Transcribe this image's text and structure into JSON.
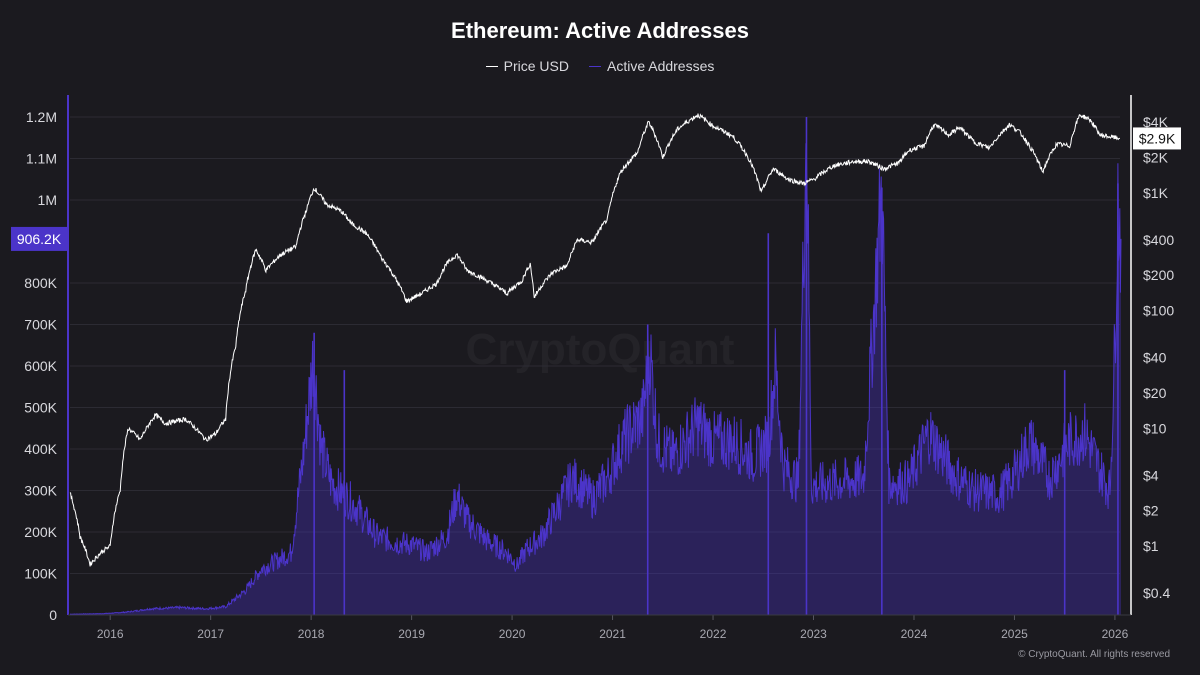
{
  "chart_data": {
    "type": "line",
    "title": "Ethereum: Active Addresses",
    "legend_position": "top-center",
    "grid": true,
    "series": [
      {
        "name": "Price USD",
        "axis": "right",
        "color": "#ffffff",
        "points": [
          [
            2015.6,
            2.8
          ],
          [
            2015.7,
            1.2
          ],
          [
            2015.8,
            0.7
          ],
          [
            2015.92,
            0.9
          ],
          [
            2016.0,
            1.0
          ],
          [
            2016.1,
            3.0
          ],
          [
            2016.18,
            10.0
          ],
          [
            2016.3,
            8.0
          ],
          [
            2016.45,
            13.0
          ],
          [
            2016.55,
            11.0
          ],
          [
            2016.75,
            12.0
          ],
          [
            2016.95,
            8.0
          ],
          [
            2017.05,
            9.0
          ],
          [
            2017.15,
            12.0
          ],
          [
            2017.25,
            50.0
          ],
          [
            2017.35,
            150.0
          ],
          [
            2017.45,
            330.0
          ],
          [
            2017.55,
            220.0
          ],
          [
            2017.7,
            300.0
          ],
          [
            2017.85,
            350.0
          ],
          [
            2017.95,
            700.0
          ],
          [
            2018.03,
            1100.0
          ],
          [
            2018.15,
            800.0
          ],
          [
            2018.3,
            700.0
          ],
          [
            2018.4,
            550.0
          ],
          [
            2018.55,
            450.0
          ],
          [
            2018.7,
            280.0
          ],
          [
            2018.85,
            180.0
          ],
          [
            2018.95,
            120.0
          ],
          [
            2019.1,
            140.0
          ],
          [
            2019.25,
            170.0
          ],
          [
            2019.35,
            250.0
          ],
          [
            2019.45,
            300.0
          ],
          [
            2019.55,
            220.0
          ],
          [
            2019.75,
            180.0
          ],
          [
            2019.95,
            140.0
          ],
          [
            2020.1,
            180.0
          ],
          [
            2020.18,
            250.0
          ],
          [
            2020.22,
            130.0
          ],
          [
            2020.4,
            210.0
          ],
          [
            2020.55,
            240.0
          ],
          [
            2020.65,
            400.0
          ],
          [
            2020.8,
            380.0
          ],
          [
            2020.95,
            600.0
          ],
          [
            2021.08,
            1500.0
          ],
          [
            2021.25,
            2200.0
          ],
          [
            2021.36,
            4000.0
          ],
          [
            2021.5,
            2000.0
          ],
          [
            2021.65,
            3500.0
          ],
          [
            2021.85,
            4600.0
          ],
          [
            2022.0,
            3700.0
          ],
          [
            2022.2,
            3000.0
          ],
          [
            2022.35,
            2000.0
          ],
          [
            2022.48,
            1000.0
          ],
          [
            2022.6,
            1600.0
          ],
          [
            2022.75,
            1300.0
          ],
          [
            2022.9,
            1200.0
          ],
          [
            2023.0,
            1300.0
          ],
          [
            2023.2,
            1700.0
          ],
          [
            2023.4,
            1850.0
          ],
          [
            2023.55,
            1850.0
          ],
          [
            2023.7,
            1600.0
          ],
          [
            2023.85,
            1800.0
          ],
          [
            2023.95,
            2300.0
          ],
          [
            2024.1,
            2500.0
          ],
          [
            2024.2,
            3800.0
          ],
          [
            2024.35,
            3100.0
          ],
          [
            2024.45,
            3600.0
          ],
          [
            2024.6,
            2700.0
          ],
          [
            2024.75,
            2400.0
          ],
          [
            2024.95,
            3800.0
          ],
          [
            2025.05,
            3300.0
          ],
          [
            2025.15,
            2500.0
          ],
          [
            2025.28,
            1500.0
          ],
          [
            2025.42,
            2600.0
          ],
          [
            2025.55,
            2500.0
          ],
          [
            2025.65,
            4600.0
          ],
          [
            2025.75,
            4200.0
          ],
          [
            2025.85,
            3100.0
          ],
          [
            2025.95,
            3000.0
          ],
          [
            2026.05,
            2900.0
          ]
        ]
      },
      {
        "name": "Active Addresses",
        "axis": "left",
        "color": "#4b34c9",
        "points": [
          [
            2015.6,
            2000
          ],
          [
            2015.9,
            3000
          ],
          [
            2016.05,
            5000
          ],
          [
            2016.2,
            8000
          ],
          [
            2016.4,
            15000
          ],
          [
            2016.7,
            18000
          ],
          [
            2016.95,
            15000
          ],
          [
            2017.15,
            20000
          ],
          [
            2017.35,
            60000
          ],
          [
            2017.5,
            110000
          ],
          [
            2017.65,
            130000
          ],
          [
            2017.8,
            150000
          ],
          [
            2017.92,
            380000
          ],
          [
            2018.02,
            620000
          ],
          [
            2018.1,
            400000
          ],
          [
            2018.2,
            320000
          ],
          [
            2018.45,
            260000
          ],
          [
            2018.65,
            190000
          ],
          [
            2018.85,
            175000
          ],
          [
            2019.0,
            170000
          ],
          [
            2019.15,
            150000
          ],
          [
            2019.35,
            190000
          ],
          [
            2019.45,
            290000
          ],
          [
            2019.55,
            230000
          ],
          [
            2019.75,
            180000
          ],
          [
            2019.95,
            150000
          ],
          [
            2020.05,
            120000
          ],
          [
            2020.15,
            160000
          ],
          [
            2020.3,
            190000
          ],
          [
            2020.45,
            260000
          ],
          [
            2020.6,
            330000
          ],
          [
            2020.8,
            280000
          ],
          [
            2020.95,
            330000
          ],
          [
            2021.1,
            420000
          ],
          [
            2021.3,
            480000
          ],
          [
            2021.37,
            640000
          ],
          [
            2021.45,
            420000
          ],
          [
            2021.6,
            380000
          ],
          [
            2021.85,
            460000
          ],
          [
            2022.0,
            420000
          ],
          [
            2022.2,
            420000
          ],
          [
            2022.4,
            380000
          ],
          [
            2022.55,
            420000
          ],
          [
            2022.62,
            600000
          ],
          [
            2022.7,
            360000
          ],
          [
            2022.85,
            320000
          ],
          [
            2022.93,
            1200000
          ],
          [
            2022.98,
            310000
          ],
          [
            2023.2,
            320000
          ],
          [
            2023.5,
            330000
          ],
          [
            2023.68,
            1030000
          ],
          [
            2023.75,
            320000
          ],
          [
            2023.95,
            320000
          ],
          [
            2024.15,
            440000
          ],
          [
            2024.4,
            340000
          ],
          [
            2024.6,
            300000
          ],
          [
            2024.85,
            290000
          ],
          [
            2025.0,
            340000
          ],
          [
            2025.15,
            420000
          ],
          [
            2025.35,
            330000
          ],
          [
            2025.55,
            420000
          ],
          [
            2025.7,
            440000
          ],
          [
            2025.85,
            350000
          ],
          [
            2025.95,
            300000
          ],
          [
            2026.0,
            650000
          ],
          [
            2026.03,
            1000000
          ],
          [
            2026.06,
            906200
          ]
        ]
      }
    ],
    "spikes": [
      {
        "series": "Active Addresses",
        "x": 2018.03,
        "y": 680000
      },
      {
        "series": "Active Addresses",
        "x": 2018.33,
        "y": 590000
      },
      {
        "series": "Active Addresses",
        "x": 2021.35,
        "y": 700000
      },
      {
        "series": "Active Addresses",
        "x": 2022.55,
        "y": 920000
      },
      {
        "series": "Active Addresses",
        "x": 2022.93,
        "y": 1200000
      },
      {
        "series": "Active Addresses",
        "x": 2023.68,
        "y": 1030000
      },
      {
        "series": "Active Addresses",
        "x": 2025.5,
        "y": 590000
      },
      {
        "series": "Active Addresses",
        "x": 2026.03,
        "y": 1040000
      }
    ],
    "left_axis": {
      "label": "",
      "ylim": [
        0,
        1200000
      ],
      "ticks": [
        {
          "value": 0,
          "label": "0"
        },
        {
          "value": 100000,
          "label": "100K"
        },
        {
          "value": 200000,
          "label": "200K"
        },
        {
          "value": 300000,
          "label": "300K"
        },
        {
          "value": 400000,
          "label": "400K"
        },
        {
          "value": 500000,
          "label": "500K"
        },
        {
          "value": 600000,
          "label": "600K"
        },
        {
          "value": 700000,
          "label": "700K"
        },
        {
          "value": 800000,
          "label": "800K"
        },
        {
          "value": 1000000,
          "label": "1M"
        },
        {
          "value": 1100000,
          "label": "1.1M"
        },
        {
          "value": 1200000,
          "label": "1.2M"
        }
      ],
      "current_value": 906200,
      "current_label": "906.2K",
      "current_color": "#4b34c9"
    },
    "right_axis": {
      "label": "",
      "scale": "log",
      "ylim": [
        0.27,
        5000
      ],
      "ticks": [
        {
          "value": 0.4,
          "label": "$0.4"
        },
        {
          "value": 1,
          "label": "$1"
        },
        {
          "value": 2,
          "label": "$2"
        },
        {
          "value": 4,
          "label": "$4"
        },
        {
          "value": 10,
          "label": "$10"
        },
        {
          "value": 20,
          "label": "$20"
        },
        {
          "value": 40,
          "label": "$40"
        },
        {
          "value": 100,
          "label": "$100"
        },
        {
          "value": 200,
          "label": "$200"
        },
        {
          "value": 400,
          "label": "$400"
        },
        {
          "value": 1000,
          "label": "$1K"
        },
        {
          "value": 2000,
          "label": "$2K"
        },
        {
          "value": 4000,
          "label": "$4K"
        }
      ],
      "current_value": 2900,
      "current_label": "$2.9K"
    },
    "x_axis": {
      "label": "",
      "xlim": [
        2015.6,
        2026.15
      ],
      "ticks": [
        {
          "value": 2016,
          "label": "2016"
        },
        {
          "value": 2017,
          "label": "2017"
        },
        {
          "value": 2018,
          "label": "2018"
        },
        {
          "value": 2019,
          "label": "2019"
        },
        {
          "value": 2020,
          "label": "2020"
        },
        {
          "value": 2021,
          "label": "2021"
        },
        {
          "value": 2022,
          "label": "2022"
        },
        {
          "value": 2023,
          "label": "2023"
        },
        {
          "value": 2024,
          "label": "2024"
        },
        {
          "value": 2025,
          "label": "2025"
        },
        {
          "value": 2026,
          "label": "2026"
        }
      ]
    }
  },
  "watermark": "CryptoQuant",
  "copyright": "© CryptoQuant. All rights reserved",
  "colors": {
    "background": "#1b1a1f",
    "grid": "#2c2b33",
    "price": "#ffffff",
    "active": "#4b34c9"
  }
}
